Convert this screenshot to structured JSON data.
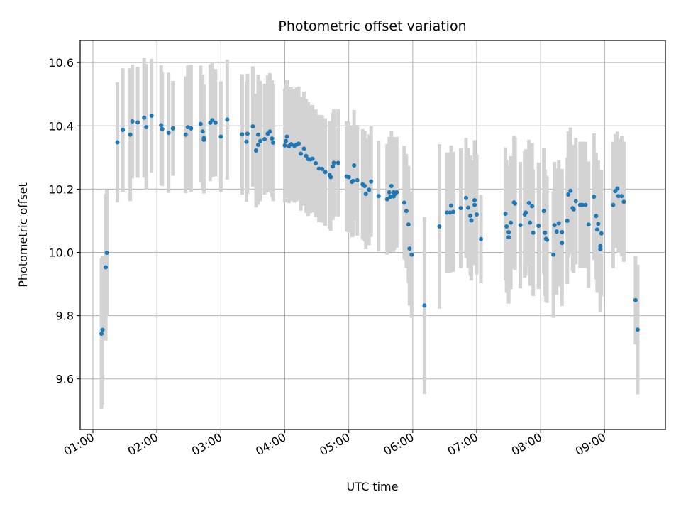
{
  "chart_data": {
    "type": "scatter",
    "title": "Photometric offset variation",
    "xlabel": "UTC time",
    "ylabel": "Photometric offset",
    "xlim": [
      "00:48",
      "09:57"
    ],
    "ylim": [
      9.44,
      10.67
    ],
    "x_ticks": [
      "01:00",
      "02:00",
      "03:00",
      "04:00",
      "05:00",
      "06:00",
      "07:00",
      "08:00",
      "09:00"
    ],
    "y_ticks": [
      9.6,
      9.8,
      10.0,
      10.2,
      10.4,
      10.6
    ],
    "y_tick_labels": [
      "9.6",
      "9.8",
      "10.0",
      "10.2",
      "10.4",
      "10.6"
    ],
    "grid": true,
    "colors": {
      "point": "#1f77b4",
      "errorbar": "#d3d3d3",
      "grid": "#b0b0b0"
    },
    "points": [
      {
        "x": "01:08",
        "y": 9.743,
        "err": 0.238
      },
      {
        "x": "01:09",
        "y": 9.755,
        "err": 0.235
      },
      {
        "x": "01:12",
        "y": 9.953,
        "err": 0.232
      },
      {
        "x": "01:13",
        "y": 9.999,
        "err": 0.2
      },
      {
        "x": "01:23",
        "y": 10.348,
        "err": 0.19
      },
      {
        "x": "01:28",
        "y": 10.387,
        "err": 0.195
      },
      {
        "x": "01:35",
        "y": 10.372,
        "err": 0.21
      },
      {
        "x": "01:37",
        "y": 10.414,
        "err": 0.18
      },
      {
        "x": "01:42",
        "y": 10.411,
        "err": 0.175
      },
      {
        "x": "01:48",
        "y": 10.426,
        "err": 0.19
      },
      {
        "x": "01:50",
        "y": 10.396,
        "err": 0.2
      },
      {
        "x": "01:55",
        "y": 10.432,
        "err": 0.18
      },
      {
        "x": "02:04",
        "y": 10.402,
        "err": 0.19
      },
      {
        "x": "02:05",
        "y": 10.39,
        "err": 0.18
      },
      {
        "x": "02:11",
        "y": 10.378,
        "err": 0.19
      },
      {
        "x": "02:15",
        "y": 10.392,
        "err": 0.15
      },
      {
        "x": "02:27",
        "y": 10.372,
        "err": 0.185
      },
      {
        "x": "02:29",
        "y": 10.396,
        "err": 0.195
      },
      {
        "x": "02:32",
        "y": 10.392,
        "err": 0.2
      },
      {
        "x": "02:41",
        "y": 10.406,
        "err": 0.185
      },
      {
        "x": "02:43",
        "y": 10.382,
        "err": 0.18
      },
      {
        "x": "02:44",
        "y": 10.361,
        "err": 0.17
      },
      {
        "x": "02:44",
        "y": 10.356,
        "err": 0.17
      },
      {
        "x": "02:50",
        "y": 10.41,
        "err": 0.185
      },
      {
        "x": "02:52",
        "y": 10.418,
        "err": 0.18
      },
      {
        "x": "02:55",
        "y": 10.41,
        "err": 0.17
      },
      {
        "x": "03:00",
        "y": 10.366,
        "err": 0.175
      },
      {
        "x": "03:06",
        "y": 10.42,
        "err": 0.19
      },
      {
        "x": "03:20",
        "y": 10.373,
        "err": 0.19
      },
      {
        "x": "03:24",
        "y": 10.35,
        "err": 0.19
      },
      {
        "x": "03:25",
        "y": 10.375,
        "err": 0.19
      },
      {
        "x": "03:30",
        "y": 10.398,
        "err": 0.19
      },
      {
        "x": "03:33",
        "y": 10.322,
        "err": 0.18
      },
      {
        "x": "03:35",
        "y": 10.372,
        "err": 0.19
      },
      {
        "x": "03:35",
        "y": 10.34,
        "err": 0.19
      },
      {
        "x": "03:37",
        "y": 10.352,
        "err": 0.19
      },
      {
        "x": "03:41",
        "y": 10.358,
        "err": 0.175
      },
      {
        "x": "03:44",
        "y": 10.375,
        "err": 0.185
      },
      {
        "x": "03:46",
        "y": 10.382,
        "err": 0.185
      },
      {
        "x": "03:48",
        "y": 10.36,
        "err": 0.185
      },
      {
        "x": "03:49",
        "y": 10.347,
        "err": 0.185
      },
      {
        "x": "04:00",
        "y": 10.338,
        "err": 0.18
      },
      {
        "x": "04:01",
        "y": 10.352,
        "err": 0.18
      },
      {
        "x": "04:02",
        "y": 10.366,
        "err": 0.18
      },
      {
        "x": "04:04",
        "y": 10.336,
        "err": 0.18
      },
      {
        "x": "04:06",
        "y": 10.342,
        "err": 0.18
      },
      {
        "x": "04:09",
        "y": 10.337,
        "err": 0.18
      },
      {
        "x": "04:11",
        "y": 10.341,
        "err": 0.18
      },
      {
        "x": "04:13",
        "y": 10.344,
        "err": 0.18
      },
      {
        "x": "04:15",
        "y": 10.312,
        "err": 0.18
      },
      {
        "x": "04:18",
        "y": 10.328,
        "err": 0.18
      },
      {
        "x": "04:20",
        "y": 10.305,
        "err": 0.18
      },
      {
        "x": "04:22",
        "y": 10.295,
        "err": 0.18
      },
      {
        "x": "04:24",
        "y": 10.294,
        "err": 0.17
      },
      {
        "x": "04:26",
        "y": 10.296,
        "err": 0.17
      },
      {
        "x": "04:29",
        "y": 10.282,
        "err": 0.17
      },
      {
        "x": "04:32",
        "y": 10.265,
        "err": 0.17
      },
      {
        "x": "04:35",
        "y": 10.264,
        "err": 0.17
      },
      {
        "x": "04:38",
        "y": 10.254,
        "err": 0.17
      },
      {
        "x": "04:42",
        "y": 10.245,
        "err": 0.17
      },
      {
        "x": "04:43",
        "y": 10.238,
        "err": 0.17
      },
      {
        "x": "04:45",
        "y": 10.272,
        "err": 0.17
      },
      {
        "x": "04:46",
        "y": 10.283,
        "err": 0.17
      },
      {
        "x": "04:50",
        "y": 10.283,
        "err": 0.17
      },
      {
        "x": "04:58",
        "y": 10.24,
        "err": 0.175
      },
      {
        "x": "05:00",
        "y": 10.238,
        "err": 0.175
      },
      {
        "x": "05:03",
        "y": 10.223,
        "err": 0.175
      },
      {
        "x": "05:04",
        "y": 10.226,
        "err": 0.175
      },
      {
        "x": "05:05",
        "y": 10.275,
        "err": 0.175
      },
      {
        "x": "05:08",
        "y": 10.228,
        "err": 0.175
      },
      {
        "x": "05:13",
        "y": 10.215,
        "err": 0.175
      },
      {
        "x": "05:15",
        "y": 10.21,
        "err": 0.175
      },
      {
        "x": "05:16",
        "y": 10.185,
        "err": 0.175
      },
      {
        "x": "05:19",
        "y": 10.198,
        "err": 0.175
      },
      {
        "x": "05:21",
        "y": 10.224,
        "err": 0.175
      },
      {
        "x": "05:28",
        "y": 10.178,
        "err": 0.175
      },
      {
        "x": "05:36",
        "y": 10.168,
        "err": 0.175
      },
      {
        "x": "05:38",
        "y": 10.19,
        "err": 0.175
      },
      {
        "x": "05:39",
        "y": 10.176,
        "err": 0.175
      },
      {
        "x": "05:40",
        "y": 10.21,
        "err": 0.175
      },
      {
        "x": "05:42",
        "y": 10.19,
        "err": 0.175
      },
      {
        "x": "05:42",
        "y": 10.177,
        "err": 0.175
      },
      {
        "x": "05:43",
        "y": 10.184,
        "err": 0.175
      },
      {
        "x": "05:45",
        "y": 10.19,
        "err": 0.175
      },
      {
        "x": "05:52",
        "y": 10.157,
        "err": 0.18
      },
      {
        "x": "05:54",
        "y": 10.131,
        "err": 0.18
      },
      {
        "x": "05:56",
        "y": 10.088,
        "err": 0.185
      },
      {
        "x": "05:57",
        "y": 10.012,
        "err": 0.18
      },
      {
        "x": "05:59",
        "y": 9.993,
        "err": 0.2
      },
      {
        "x": "06:11",
        "y": 9.832,
        "err": 0.28
      },
      {
        "x": "06:25",
        "y": 10.082,
        "err": 0.26
      },
      {
        "x": "06:32",
        "y": 10.126,
        "err": 0.19
      },
      {
        "x": "06:35",
        "y": 10.126,
        "err": 0.19
      },
      {
        "x": "06:36",
        "y": 10.148,
        "err": 0.19
      },
      {
        "x": "06:38",
        "y": 10.128,
        "err": 0.19
      },
      {
        "x": "06:45",
        "y": 10.14,
        "err": 0.19
      },
      {
        "x": "06:50",
        "y": 10.172,
        "err": 0.19
      },
      {
        "x": "06:52",
        "y": 10.141,
        "err": 0.19
      },
      {
        "x": "06:54",
        "y": 10.116,
        "err": 0.19
      },
      {
        "x": "06:55",
        "y": 10.101,
        "err": 0.19
      },
      {
        "x": "06:58",
        "y": 10.15,
        "err": 0.19
      },
      {
        "x": "06:58",
        "y": 10.165,
        "err": 0.19
      },
      {
        "x": "07:00",
        "y": 10.12,
        "err": 0.19
      },
      {
        "x": "07:04",
        "y": 10.042,
        "err": 0.14
      },
      {
        "x": "07:27",
        "y": 10.122,
        "err": 0.21
      },
      {
        "x": "07:28",
        "y": 10.082,
        "err": 0.21
      },
      {
        "x": "07:30",
        "y": 10.048,
        "err": 0.21
      },
      {
        "x": "07:30",
        "y": 10.064,
        "err": 0.21
      },
      {
        "x": "07:32",
        "y": 10.094,
        "err": 0.21
      },
      {
        "x": "07:35",
        "y": 10.158,
        "err": 0.21
      },
      {
        "x": "07:36",
        "y": 10.154,
        "err": 0.21
      },
      {
        "x": "07:41",
        "y": 10.086,
        "err": 0.2
      },
      {
        "x": "07:45",
        "y": 10.12,
        "err": 0.2
      },
      {
        "x": "07:46",
        "y": 10.126,
        "err": 0.2
      },
      {
        "x": "07:49",
        "y": 10.156,
        "err": 0.2
      },
      {
        "x": "07:50",
        "y": 10.094,
        "err": 0.2
      },
      {
        "x": "07:52",
        "y": 10.146,
        "err": 0.2
      },
      {
        "x": "07:53",
        "y": 10.062,
        "err": 0.2
      },
      {
        "x": "07:58",
        "y": 10.084,
        "err": 0.2
      },
      {
        "x": "08:03",
        "y": 10.131,
        "err": 0.2
      },
      {
        "x": "08:04",
        "y": 10.062,
        "err": 0.2
      },
      {
        "x": "08:05",
        "y": 10.043,
        "err": 0.2
      },
      {
        "x": "08:06",
        "y": 10.04,
        "err": 0.2
      },
      {
        "x": "08:12",
        "y": 9.993,
        "err": 0.2
      },
      {
        "x": "08:13",
        "y": 10.086,
        "err": 0.2
      },
      {
        "x": "08:15",
        "y": 10.066,
        "err": 0.2
      },
      {
        "x": "08:17",
        "y": 10.092,
        "err": 0.2
      },
      {
        "x": "08:20",
        "y": 10.03,
        "err": 0.2
      },
      {
        "x": "08:20",
        "y": 10.064,
        "err": 0.2
      },
      {
        "x": "08:25",
        "y": 10.1,
        "err": 0.2
      },
      {
        "x": "08:26",
        "y": 10.183,
        "err": 0.2
      },
      {
        "x": "08:28",
        "y": 10.195,
        "err": 0.2
      },
      {
        "x": "08:30",
        "y": 10.14,
        "err": 0.2
      },
      {
        "x": "08:31",
        "y": 10.136,
        "err": 0.2
      },
      {
        "x": "08:33",
        "y": 10.162,
        "err": 0.2
      },
      {
        "x": "08:37",
        "y": 10.15,
        "err": 0.2
      },
      {
        "x": "08:39",
        "y": 10.15,
        "err": 0.2
      },
      {
        "x": "08:42",
        "y": 10.15,
        "err": 0.2
      },
      {
        "x": "08:45",
        "y": 10.088,
        "err": 0.2
      },
      {
        "x": "08:50",
        "y": 10.176,
        "err": 0.2
      },
      {
        "x": "08:52",
        "y": 10.115,
        "err": 0.2
      },
      {
        "x": "08:53",
        "y": 10.072,
        "err": 0.2
      },
      {
        "x": "08:54",
        "y": 10.09,
        "err": 0.2
      },
      {
        "x": "08:56",
        "y": 10.02,
        "err": 0.2
      },
      {
        "x": "08:56",
        "y": 10.01,
        "err": 0.2
      },
      {
        "x": "08:57",
        "y": 10.06,
        "err": 0.2
      },
      {
        "x": "09:08",
        "y": 10.15,
        "err": 0.2
      },
      {
        "x": "09:10",
        "y": 10.194,
        "err": 0.18
      },
      {
        "x": "09:12",
        "y": 10.202,
        "err": 0.18
      },
      {
        "x": "09:13",
        "y": 10.178,
        "err": 0.18
      },
      {
        "x": "09:16",
        "y": 10.178,
        "err": 0.19
      },
      {
        "x": "09:18",
        "y": 10.16,
        "err": 0.19
      },
      {
        "x": "09:29",
        "y": 9.849,
        "err": 0.14
      },
      {
        "x": "09:31",
        "y": 9.756,
        "err": 0.205
      }
    ]
  }
}
